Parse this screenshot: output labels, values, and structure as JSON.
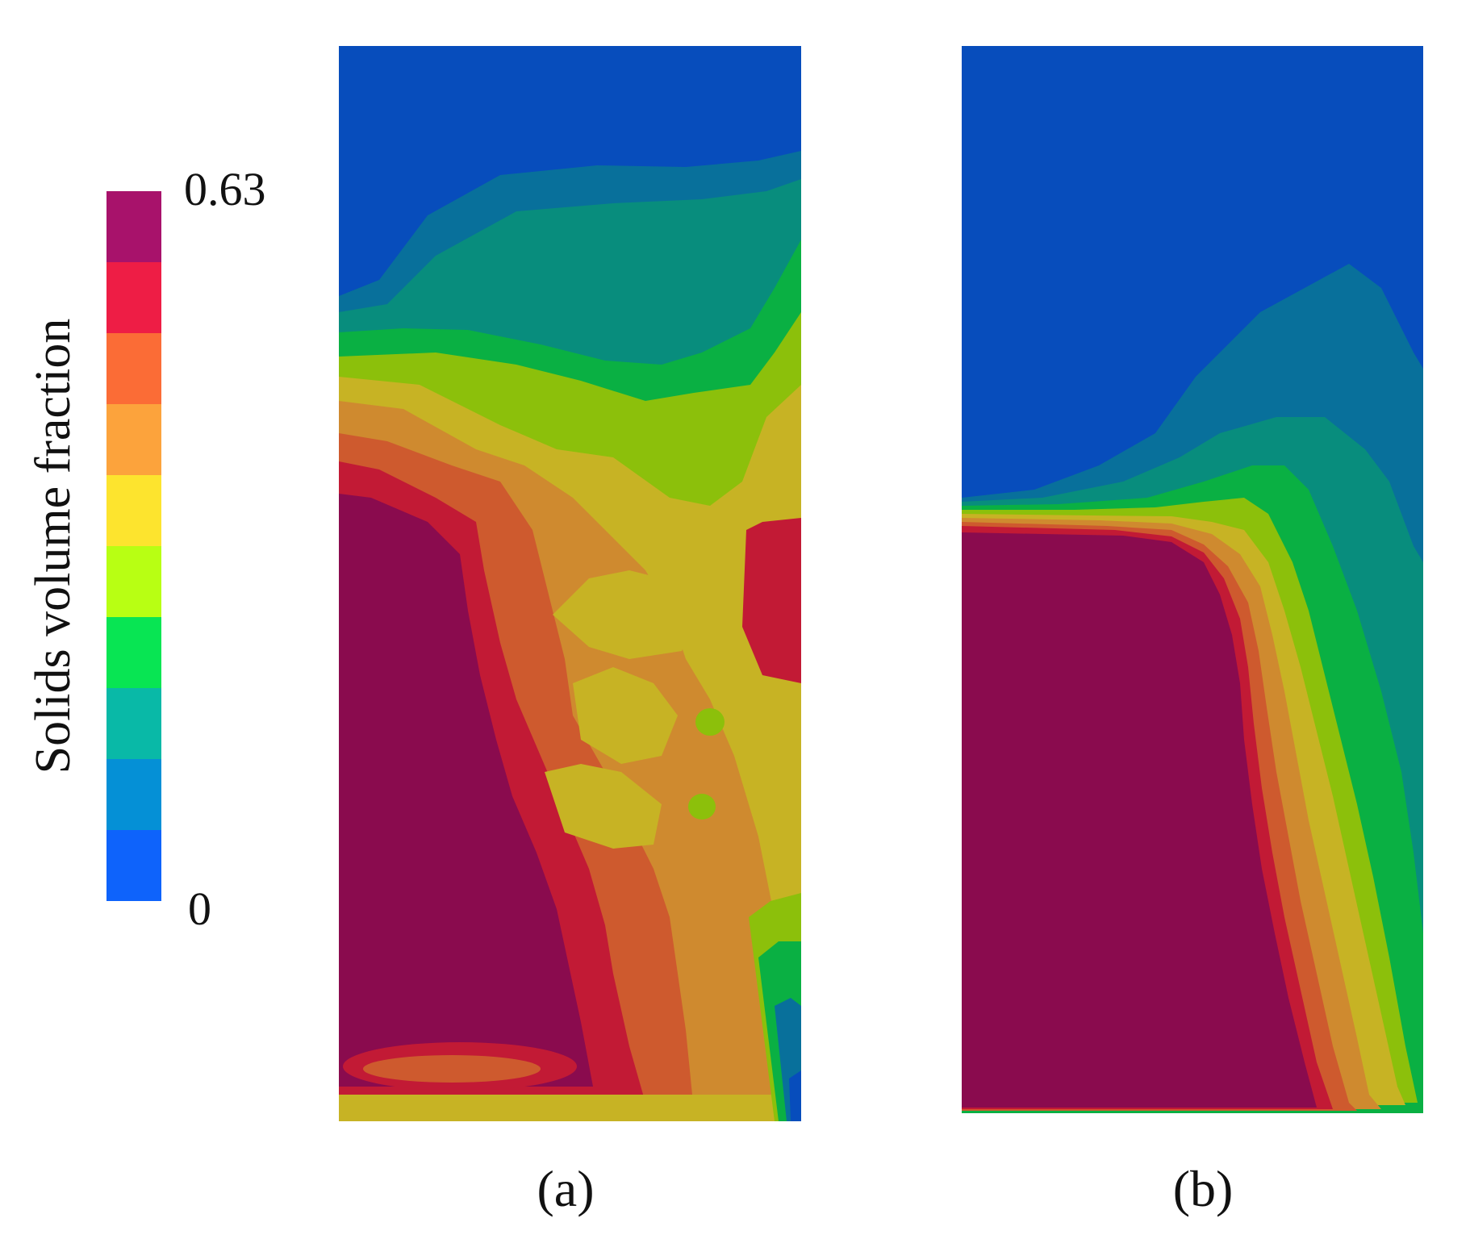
{
  "colorbar": {
    "title": "Solids volume fraction",
    "max_label": "0.63",
    "min_label": "0",
    "min_value": 0,
    "max_value": 0.63,
    "colors_top_to_bottom": [
      "#A8126B",
      "#EE1D45",
      "#FB6C36",
      "#FCA33C",
      "#FDE42E",
      "#B8FF13",
      "#08E553",
      "#09B9A7",
      "#0590D6",
      "#0E63FB"
    ]
  },
  "panels": {
    "a": {
      "label": "(a)"
    },
    "b": {
      "label": "(b)"
    }
  },
  "fill_colors": {
    "c0": "#074DBC",
    "c1": "#08709B",
    "c2": "#088D7D",
    "c3": "#0AB043",
    "c4": "#8CC00B",
    "c5": "#C7B324",
    "c6": "#CF8A2F",
    "c7": "#CE5A2E",
    "c8": "#C21A35",
    "c9": "#8A0B4E"
  }
}
